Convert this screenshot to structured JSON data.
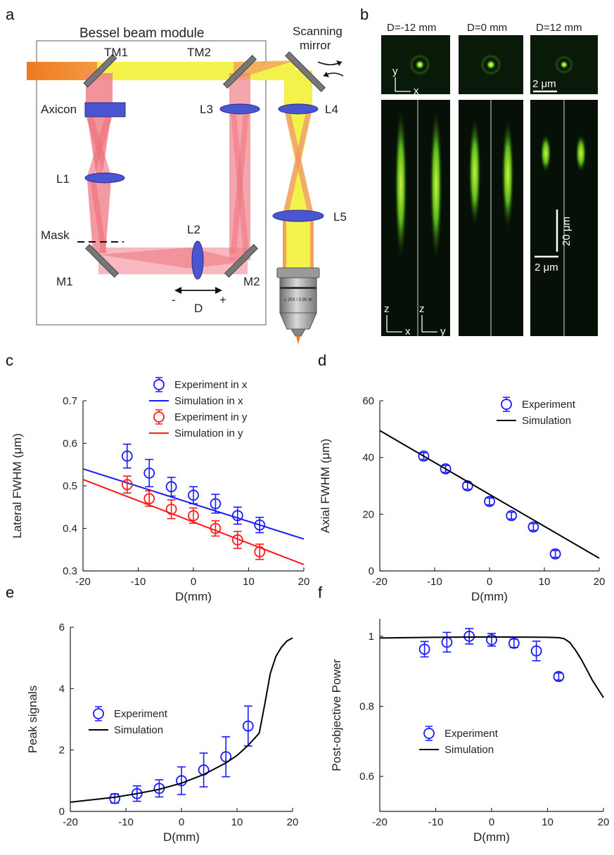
{
  "panel_labels": [
    "a",
    "b",
    "c",
    "d",
    "e",
    "f"
  ],
  "panel_a": {
    "module_title": "Bessel beam module",
    "scanning_mirror_line1": "Scanning",
    "scanning_mirror_line2": "mirror",
    "labels": {
      "tm1": "TM1",
      "tm2": "TM2",
      "axicon": "Axicon",
      "l1": "L1",
      "l2": "L2",
      "l3": "L3",
      "l4": "L4",
      "l5": "L5",
      "mask": "Mask",
      "m1": "M1",
      "m2": "M2",
      "d": "D",
      "minus": "-",
      "plus": "+"
    },
    "objective_text": "L 25X / 0.95 W",
    "colors": {
      "input_beam": "#f07a20",
      "bessel_beam": "#f0808a",
      "gaussian_beam": "#f2f24a",
      "lens": "#4a55d0"
    }
  },
  "panel_b": {
    "columns": [
      "D=-12 mm",
      "D=0 mm",
      "D=12 mm"
    ],
    "axis_labels": {
      "y": "y",
      "x": "x",
      "z1": "z",
      "x1": "x",
      "z2": "z",
      "y2": "y"
    },
    "scalebar_lateral": "2 μm",
    "scalebar_axial": "20 μm",
    "scalebar_lateral_bottom": "2 μm",
    "spot_color": "#b8ff40"
  },
  "chart_data": [
    {
      "panel": "c",
      "type": "scatter",
      "xlabel": "D(mm)",
      "ylabel": "Lateral FWHM (μm)",
      "xlim": [
        -20,
        20
      ],
      "ylim": [
        0.3,
        0.7
      ],
      "xticks": [
        "-20",
        "-10",
        "0",
        "10",
        "20"
      ],
      "yticks": [
        "0.3",
        "0.4",
        "0.5",
        "0.6",
        "0.7"
      ],
      "legend_position": "top-right",
      "series": [
        {
          "name": "Experiment in x",
          "kind": "errorbar",
          "color": "#1a1aff",
          "x": [
            -12,
            -8,
            -4,
            0,
            4,
            8,
            12
          ],
          "y": [
            0.57,
            0.53,
            0.498,
            0.478,
            0.458,
            0.43,
            0.408
          ],
          "err": [
            0.028,
            0.032,
            0.022,
            0.02,
            0.022,
            0.02,
            0.018
          ]
        },
        {
          "name": "Simulation in x",
          "kind": "line",
          "color": "#1a1aff",
          "x": [
            -20,
            20
          ],
          "y": [
            0.54,
            0.375
          ]
        },
        {
          "name": "Experiment in y",
          "kind": "errorbar",
          "color": "#ff1a1a",
          "x": [
            -12,
            -8,
            -4,
            0,
            4,
            8,
            12
          ],
          "y": [
            0.503,
            0.47,
            0.445,
            0.43,
            0.4,
            0.373,
            0.345
          ],
          "err": [
            0.02,
            0.018,
            0.022,
            0.018,
            0.018,
            0.02,
            0.018
          ]
        },
        {
          "name": "Simulation in y",
          "kind": "line",
          "color": "#ff1a1a",
          "x": [
            -20,
            20
          ],
          "y": [
            0.515,
            0.315
          ]
        }
      ]
    },
    {
      "panel": "d",
      "type": "scatter",
      "xlabel": "D(mm)",
      "ylabel": "Axial FWHM (μm)",
      "xlim": [
        -20,
        20
      ],
      "ylim": [
        0,
        60
      ],
      "xticks": [
        "-20",
        "-10",
        "0",
        "10",
        "20"
      ],
      "yticks": [
        "0",
        "20",
        "40",
        "60"
      ],
      "legend_position": "top-right",
      "series": [
        {
          "name": "Experiment",
          "kind": "errorbar",
          "color": "#1a1aff",
          "x": [
            -12,
            -8,
            -4,
            0,
            4,
            8,
            12
          ],
          "y": [
            40.5,
            36,
            30,
            24.5,
            19.5,
            15.5,
            6
          ],
          "err": [
            1.2,
            1.2,
            1.2,
            1.2,
            1.2,
            1.2,
            1.2
          ]
        },
        {
          "name": "Simulation",
          "kind": "line",
          "color": "#000000",
          "x": [
            -20,
            20
          ],
          "y": [
            49.5,
            4.5
          ]
        }
      ]
    },
    {
      "panel": "e",
      "type": "scatter",
      "xlabel": "D(mm)",
      "ylabel": "Peak signals",
      "xlim": [
        -20,
        20
      ],
      "ylim": [
        0,
        6
      ],
      "xticks": [
        "-20",
        "-10",
        "0",
        "10",
        "20"
      ],
      "yticks": [
        "0",
        "2",
        "4",
        "6"
      ],
      "legend_position": "center-left",
      "series": [
        {
          "name": "Experiment",
          "kind": "errorbar",
          "color": "#1a1aff",
          "x": [
            -12,
            -8,
            -4,
            0,
            4,
            8,
            12
          ],
          "y": [
            0.42,
            0.58,
            0.75,
            1.0,
            1.35,
            1.78,
            2.78
          ],
          "err": [
            0.15,
            0.25,
            0.28,
            0.45,
            0.55,
            0.65,
            0.65
          ]
        },
        {
          "name": "Simulation",
          "kind": "line",
          "color": "#000000",
          "x": [
            -20,
            -16,
            -12,
            -8,
            -4,
            0,
            4,
            8,
            10,
            12,
            13,
            14,
            15,
            16,
            17,
            18,
            19,
            20
          ],
          "y": [
            0.3,
            0.38,
            0.46,
            0.58,
            0.72,
            0.92,
            1.2,
            1.58,
            1.82,
            2.15,
            2.35,
            2.55,
            3.5,
            4.5,
            5.05,
            5.35,
            5.55,
            5.65
          ]
        }
      ]
    },
    {
      "panel": "f",
      "type": "scatter",
      "xlabel": "D(mm)",
      "ylabel": "Post-objective Power",
      "xlim": [
        -20,
        20
      ],
      "ylim": [
        0.5,
        1.05
      ],
      "xticks": [
        "-20",
        "-10",
        "0",
        "10",
        "20"
      ],
      "yticks": [
        "0.6",
        "0.8",
        "1"
      ],
      "legend_position": "center-left",
      "series": [
        {
          "name": "Experiment",
          "kind": "errorbar",
          "color": "#1a1aff",
          "x": [
            -12,
            -8,
            -4,
            0,
            4,
            8,
            12
          ],
          "y": [
            0.963,
            0.983,
            1.0,
            0.99,
            0.98,
            0.958,
            0.885
          ],
          "err": [
            0.022,
            0.028,
            0.022,
            0.018,
            0.012,
            0.028,
            0.01
          ]
        },
        {
          "name": "Simulation",
          "kind": "line",
          "color": "#000000",
          "x": [
            -20,
            -10,
            0,
            10,
            12,
            13,
            14,
            15,
            16,
            17,
            18,
            19,
            20
          ],
          "y": [
            0.995,
            0.997,
            0.998,
            0.997,
            0.996,
            0.993,
            0.982,
            0.96,
            0.935,
            0.905,
            0.875,
            0.85,
            0.825
          ]
        }
      ]
    }
  ]
}
